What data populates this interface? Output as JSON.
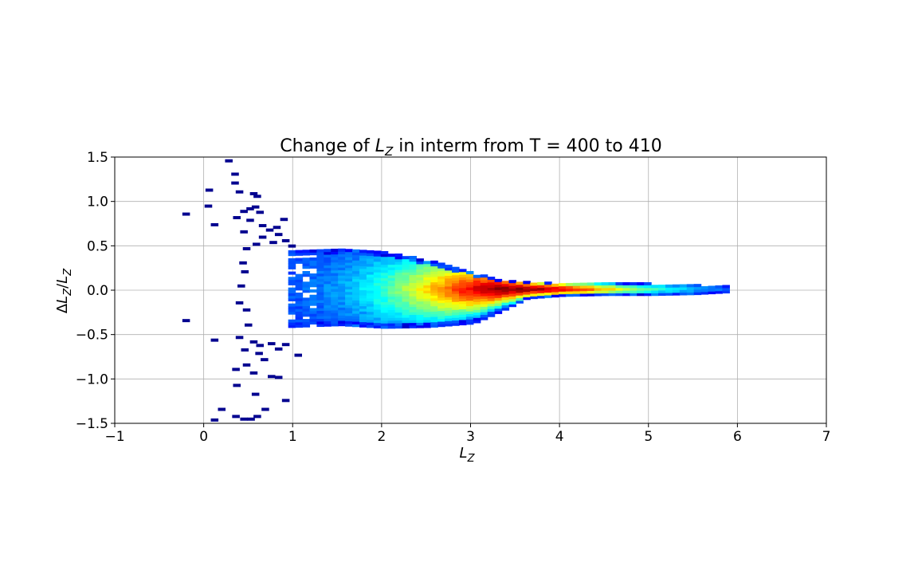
{
  "chart_data": {
    "type": "heatmap",
    "title": {
      "prefix": "Change of ",
      "var": "L",
      "sub": "Z",
      "suffix": " in interm from T = 400 to 410"
    },
    "xlabel": {
      "var": "L",
      "sub": "Z"
    },
    "ylabel": {
      "delta": "Δ",
      "var": "L",
      "sub": "Z",
      "slash": "/",
      "var2": "L",
      "sub2": "Z"
    },
    "xlim": [
      -1,
      7
    ],
    "ylim": [
      -1.5,
      1.5
    ],
    "xticks": [
      -1,
      0,
      1,
      2,
      3,
      4,
      5,
      6,
      7
    ],
    "yticks": [
      -1.5,
      -1.0,
      -0.5,
      0.0,
      0.5,
      1.0,
      1.5
    ],
    "xtick_labels": [
      "−1",
      "0",
      "1",
      "2",
      "3",
      "4",
      "5",
      "6",
      "7"
    ],
    "ytick_labels": [
      "−1.5",
      "−1.0",
      "−0.5",
      "0.0",
      "0.5",
      "1.0",
      "1.5"
    ],
    "grid": true,
    "colormap": "jet",
    "bin_width_x": 0.08,
    "bin_height_y": 0.03,
    "core_envelope": {
      "x": [
        0.95,
        1.5,
        2.0,
        2.5,
        3.0,
        3.3,
        3.6,
        4.0,
        4.5,
        5.0,
        5.5,
        5.85
      ],
      "top": [
        0.45,
        0.45,
        0.42,
        0.32,
        0.18,
        0.11,
        0.08,
        0.07,
        0.07,
        0.06,
        0.05,
        0.03
      ],
      "bot": [
        -0.42,
        -0.4,
        -0.43,
        -0.42,
        -0.38,
        -0.25,
        -0.1,
        -0.07,
        -0.06,
        -0.06,
        -0.05,
        -0.03
      ],
      "peak_x": 3.5,
      "center_y": 0.0
    },
    "sparse_points": [
      [
        0.24,
        1.46
      ],
      [
        0.31,
        1.31
      ],
      [
        0.02,
        1.13
      ],
      [
        0.31,
        1.21
      ],
      [
        0.36,
        1.11
      ],
      [
        0.52,
        1.09
      ],
      [
        0.56,
        1.06
      ],
      [
        0.01,
        0.95
      ],
      [
        -0.24,
        0.86
      ],
      [
        0.54,
        0.94
      ],
      [
        0.48,
        0.92
      ],
      [
        0.59,
        0.88
      ],
      [
        0.41,
        0.89
      ],
      [
        0.33,
        0.82
      ],
      [
        0.48,
        0.79
      ],
      [
        0.08,
        0.74
      ],
      [
        0.62,
        0.73
      ],
      [
        0.86,
        0.8
      ],
      [
        0.78,
        0.71
      ],
      [
        0.41,
        0.66
      ],
      [
        0.7,
        0.68
      ],
      [
        0.62,
        0.6
      ],
      [
        0.8,
        0.63
      ],
      [
        0.74,
        0.54
      ],
      [
        0.55,
        0.52
      ],
      [
        0.88,
        0.56
      ],
      [
        0.44,
        0.47
      ],
      [
        0.95,
        0.5
      ],
      [
        0.4,
        0.31
      ],
      [
        0.42,
        0.21
      ],
      [
        0.38,
        0.05
      ],
      [
        0.36,
        -0.14
      ],
      [
        0.44,
        -0.22
      ],
      [
        -0.24,
        -0.34
      ],
      [
        0.46,
        -0.39
      ],
      [
        0.36,
        -0.53
      ],
      [
        0.08,
        -0.56
      ],
      [
        0.52,
        -0.58
      ],
      [
        0.59,
        -0.62
      ],
      [
        0.72,
        -0.6
      ],
      [
        0.88,
        -0.61
      ],
      [
        0.42,
        -0.67
      ],
      [
        0.58,
        -0.71
      ],
      [
        0.8,
        -0.66
      ],
      [
        1.02,
        -0.73
      ],
      [
        0.44,
        -0.84
      ],
      [
        0.64,
        -0.78
      ],
      [
        0.32,
        -0.89
      ],
      [
        0.52,
        -0.93
      ],
      [
        0.72,
        -0.97
      ],
      [
        0.8,
        -0.98
      ],
      [
        0.33,
        -1.07
      ],
      [
        0.54,
        -1.17
      ],
      [
        0.88,
        -1.24
      ],
      [
        0.16,
        -1.34
      ],
      [
        0.65,
        -1.34
      ],
      [
        0.32,
        -1.42
      ],
      [
        0.56,
        -1.42
      ],
      [
        0.41,
        -1.45
      ],
      [
        0.49,
        -1.45
      ],
      [
        0.08,
        -1.46
      ]
    ]
  }
}
